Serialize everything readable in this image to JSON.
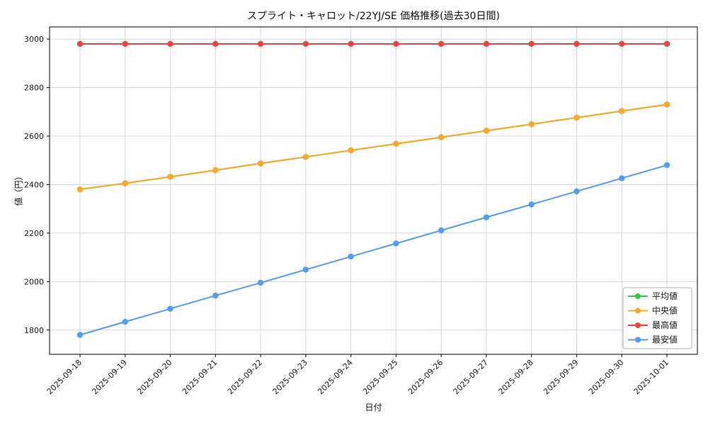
{
  "chart_data": {
    "type": "line",
    "title": "スプライト・キャロット/22YJ/SE 価格推移(過去30日間)",
    "xlabel": "日付",
    "ylabel": "値（円）",
    "x": [
      "2025-09-18",
      "2025-09-19",
      "2025-09-20",
      "2025-09-21",
      "2025-09-22",
      "2025-09-23",
      "2025-09-24",
      "2025-09-25",
      "2025-09-26",
      "2025-09-27",
      "2025-09-28",
      "2025-09-29",
      "2025-09-30",
      "2025-10-01"
    ],
    "yticks": [
      1800,
      2000,
      2200,
      2400,
      2600,
      2800,
      3000
    ],
    "ylim": [
      1700,
      3050
    ],
    "grid": true,
    "legend_position": "lower right",
    "colors": {
      "grid": "#d4d7e4",
      "axis": "#000000",
      "legend_border": "#b0b0b0"
    },
    "series": [
      {
        "name": "平均値",
        "color": "#2ecc40",
        "values": [
          2380,
          2405,
          2432,
          2459,
          2487,
          2514,
          2541,
          2568,
          2595,
          2622,
          2649,
          2676,
          2703,
          2730
        ]
      },
      {
        "name": "中央値",
        "color": "#ffa726",
        "values": [
          2380,
          2405,
          2432,
          2459,
          2487,
          2514,
          2541,
          2568,
          2595,
          2622,
          2649,
          2676,
          2703,
          2730
        ]
      },
      {
        "name": "最高値",
        "color": "#f44336",
        "values": [
          2980,
          2980,
          2980,
          2980,
          2980,
          2980,
          2980,
          2980,
          2980,
          2980,
          2980,
          2980,
          2980,
          2980
        ]
      },
      {
        "name": "最安値",
        "color": "#4f9df7",
        "values": [
          1780,
          1834,
          1888,
          1942,
          1995,
          2049,
          2103,
          2157,
          2211,
          2265,
          2318,
          2372,
          2426,
          2480
        ]
      }
    ]
  }
}
